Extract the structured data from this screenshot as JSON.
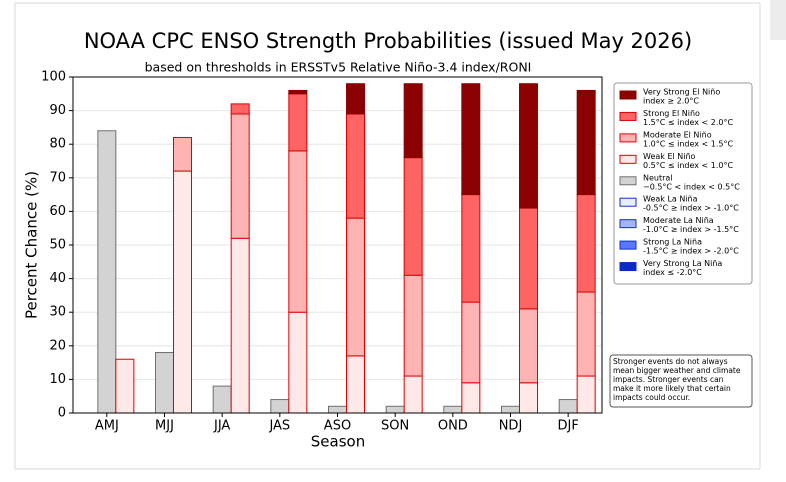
{
  "chart_data": {
    "type": "grouped-stacked-bar",
    "title": "NOAA CPC ENSO Strength Probabilities (issued May 2026)",
    "subtitle": "based on thresholds in ERSSTv5 Relative Niño-3.4 index/RONI",
    "x_label": "Season",
    "y_label": "Percent Chance (%)",
    "categories": [
      "AMJ",
      "MJJ",
      "JJA",
      "JAS",
      "ASO",
      "SON",
      "OND",
      "NDJ",
      "DJF"
    ],
    "ylim": [
      0,
      100
    ],
    "yticks": [
      0,
      10,
      20,
      30,
      40,
      50,
      60,
      70,
      80,
      90,
      100
    ],
    "grid": true,
    "legend": "upper right",
    "series": [
      {
        "name": "Very Strong El Niño",
        "threshold": "index ≥ 2.0°C",
        "stack": "el-nino",
        "color": "#8b0000",
        "edge": "#8b0000",
        "values": [
          0,
          0,
          0,
          1,
          9,
          22,
          33,
          37,
          31
        ]
      },
      {
        "name": "Strong El Niño",
        "threshold": "1.5°C ≤ index < 2.0°C",
        "stack": "el-nino",
        "color": "#ff6464",
        "edge": "#e00000",
        "values": [
          0,
          0,
          3,
          17,
          31,
          35,
          32,
          30,
          29
        ]
      },
      {
        "name": "Moderate El Niño",
        "threshold": "1.0°C ≤ index < 1.5°C",
        "stack": "el-nino",
        "color": "#ffb4b4",
        "edge": "#e00000",
        "values": [
          0,
          10,
          37,
          48,
          41,
          30,
          24,
          22,
          25
        ]
      },
      {
        "name": "Weak El Niño",
        "threshold": "0.5°C ≤ index < 1.0°C",
        "stack": "el-nino",
        "color": "#ffe8e8",
        "edge": "#e00000",
        "values": [
          16,
          72,
          52,
          30,
          17,
          11,
          9,
          9,
          11
        ]
      },
      {
        "name": "Neutral",
        "threshold": "−0.5°C < index < 0.5°C",
        "stack": "neutral",
        "color": "#d3d3d3",
        "edge": "#707070",
        "values": [
          84,
          18,
          8,
          4,
          2,
          2,
          2,
          2,
          4
        ]
      },
      {
        "name": "Weak La Niña",
        "threshold": "-0.5°C ≥ index > -1.0°C",
        "stack": "la-nina",
        "color": "#e8ecff",
        "edge": "#1030d0",
        "values": [
          0,
          0,
          0,
          0,
          0,
          0,
          0,
          0,
          0
        ]
      },
      {
        "name": "Moderate La Niña",
        "threshold": "-1.0°C ≥ index > -1.5°C",
        "stack": "la-nina",
        "color": "#a4b4ff",
        "edge": "#1030d0",
        "values": [
          0,
          0,
          0,
          0,
          0,
          0,
          0,
          0,
          0
        ]
      },
      {
        "name": "Strong La Niña",
        "threshold": "-1.5°C ≥ index > -2.0°C",
        "stack": "la-nina",
        "color": "#5a78ff",
        "edge": "#1030d0",
        "values": [
          0,
          0,
          0,
          0,
          0,
          0,
          0,
          0,
          0
        ]
      },
      {
        "name": "Very Strong La Niña",
        "threshold": "index ≤ -2.0°C",
        "stack": "la-nina",
        "color": "#0a28c8",
        "edge": "#0a28c8",
        "values": [
          0,
          0,
          0,
          0,
          0,
          0,
          0,
          0,
          0
        ]
      }
    ],
    "note": [
      "Stronger events do not always",
      "mean bigger weather and climate",
      "impacts. Stronger events can",
      "make it more likely that certain",
      "impacts could occur."
    ]
  }
}
